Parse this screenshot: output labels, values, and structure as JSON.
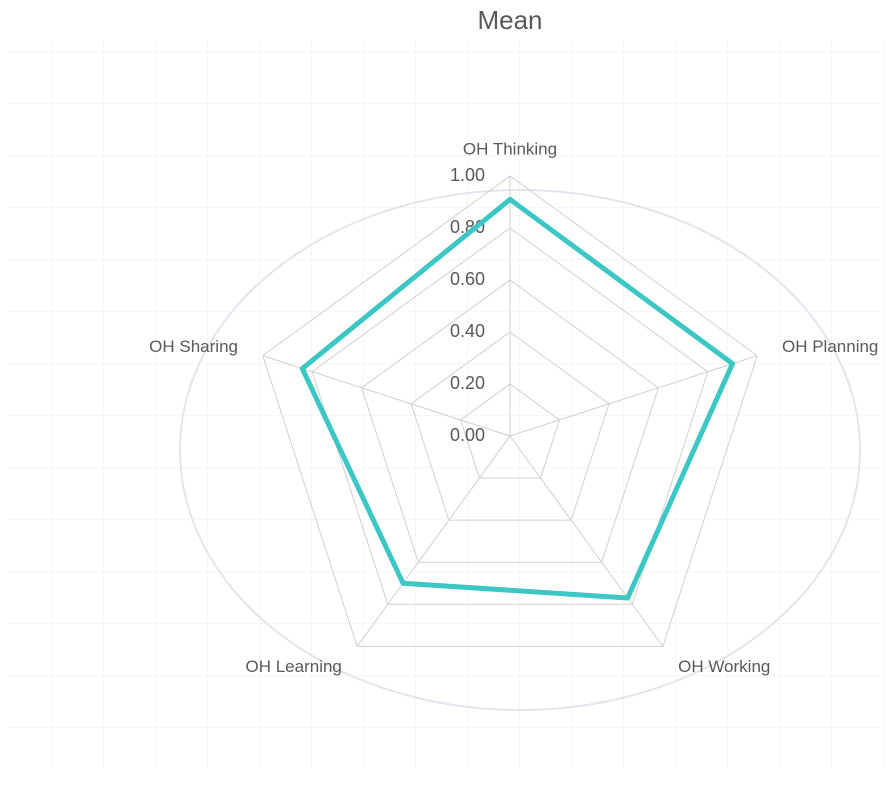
{
  "chart_data": {
    "type": "radar",
    "title": "Mean",
    "categories": [
      "OH Thinking",
      "OH Planning",
      "OH Working",
      "OH Learning",
      "OH Sharing"
    ],
    "values": [
      0.91,
      0.9,
      0.77,
      0.7,
      0.84
    ],
    "color": "#3cc7c4",
    "ylim": [
      0,
      1
    ],
    "yticks": [
      {
        "value": 0,
        "label": "0.00"
      },
      {
        "value": 0.2,
        "label": "0.20"
      },
      {
        "value": 0.4,
        "label": "0.40"
      },
      {
        "value": 0.6,
        "label": "0.60"
      },
      {
        "value": 0.8,
        "label": "0.80"
      },
      {
        "value": 1,
        "label": "1.00"
      }
    ],
    "grid": true
  }
}
